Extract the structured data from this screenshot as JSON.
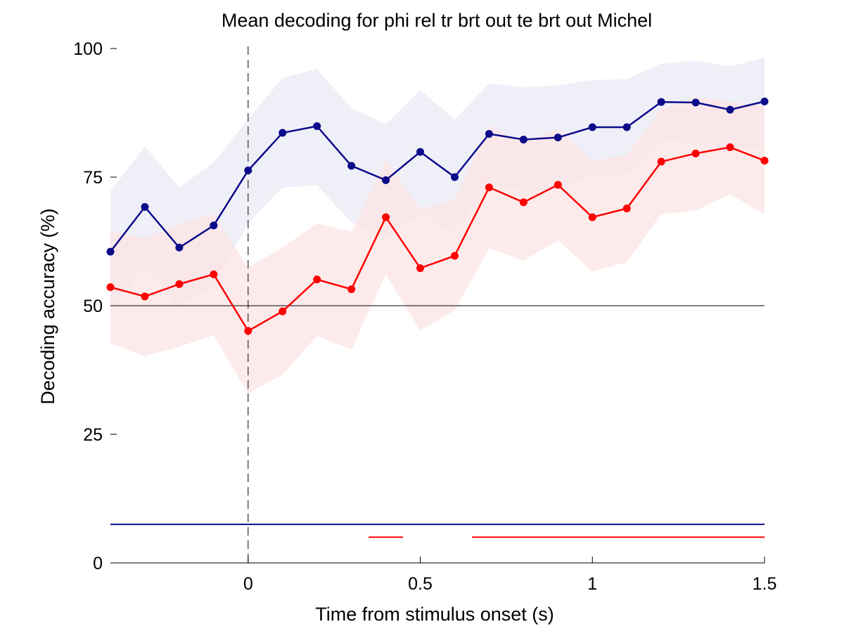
{
  "chart_data": {
    "type": "line",
    "title": "Mean decoding for phi rel tr brt out te brt out  Michel",
    "xlabel": "Time from stimulus onset (s)",
    "ylabel": "Decoding accuracy (%)",
    "xlim": [
      -0.4,
      1.5
    ],
    "ylim": [
      0,
      100
    ],
    "x_ticks": [
      0,
      0.5,
      1,
      1.5
    ],
    "x_tick_labels": [
      "0",
      "0.5",
      "1",
      "1.5"
    ],
    "y_ticks": [
      0,
      25,
      50,
      75,
      100
    ],
    "y_tick_labels": [
      "0",
      "25",
      "50",
      "75",
      "100"
    ],
    "grid": false,
    "chance_level": 50,
    "onset_marker_x": 0,
    "x": [
      -0.4,
      -0.3,
      -0.2,
      -0.1,
      0,
      0.1,
      0.2,
      0.3,
      0.4,
      0.5,
      0.6,
      0.7,
      0.8,
      0.9,
      1.0,
      1.1,
      1.2,
      1.3,
      1.4,
      1.5
    ],
    "series": [
      {
        "color": "#0b0b8a",
        "band_color": "#e9e9f6",
        "values": [
          60.5,
          69.2,
          61.3,
          65.6,
          76.3,
          83.6,
          84.9,
          77.2,
          74.4,
          79.9,
          75.0,
          83.4,
          82.3,
          82.7,
          84.7,
          84.7,
          89.6,
          89.5,
          88.1,
          89.7
        ],
        "upper": [
          72.3,
          81.0,
          73.0,
          77.9,
          86.3,
          94.3,
          96.0,
          88.4,
          85.3,
          91.9,
          86.2,
          93.2,
          92.5,
          92.8,
          93.9,
          94.0,
          97.1,
          97.6,
          96.5,
          98.2
        ],
        "lower": [
          49.5,
          57.3,
          49.6,
          54.0,
          66.0,
          73.0,
          73.4,
          66.2,
          63.2,
          68.0,
          64.2,
          73.5,
          72.3,
          72.7,
          75.6,
          75.5,
          82.1,
          81.6,
          79.6,
          81.4
        ],
        "significance": [
          [
            -0.4,
            1.5
          ]
        ],
        "significance_y": 7.5
      },
      {
        "color": "#ff0000",
        "band_color": "#fce4e4",
        "values": [
          53.6,
          51.8,
          54.2,
          56.1,
          45.1,
          48.9,
          55.1,
          53.2,
          67.2,
          57.3,
          59.7,
          73.0,
          70.1,
          73.5,
          67.2,
          68.9,
          78.0,
          79.6,
          80.8,
          78.2
        ],
        "upper": [
          64.5,
          63.0,
          66.0,
          67.8,
          57.4,
          61.3,
          66.0,
          64.4,
          78.3,
          68.9,
          70.6,
          85.1,
          81.6,
          84.4,
          78.1,
          79.3,
          88.2,
          90.5,
          89.6,
          88.9
        ],
        "lower": [
          42.7,
          40.2,
          42.0,
          44.3,
          32.9,
          36.6,
          44.1,
          41.5,
          56.1,
          45.2,
          49.1,
          61.1,
          58.8,
          62.7,
          56.6,
          58.5,
          67.8,
          68.5,
          71.7,
          67.7
        ],
        "significance": [
          [
            0.35,
            0.45
          ],
          [
            0.65,
            1.5
          ]
        ],
        "significance_y": 5.0
      }
    ]
  }
}
